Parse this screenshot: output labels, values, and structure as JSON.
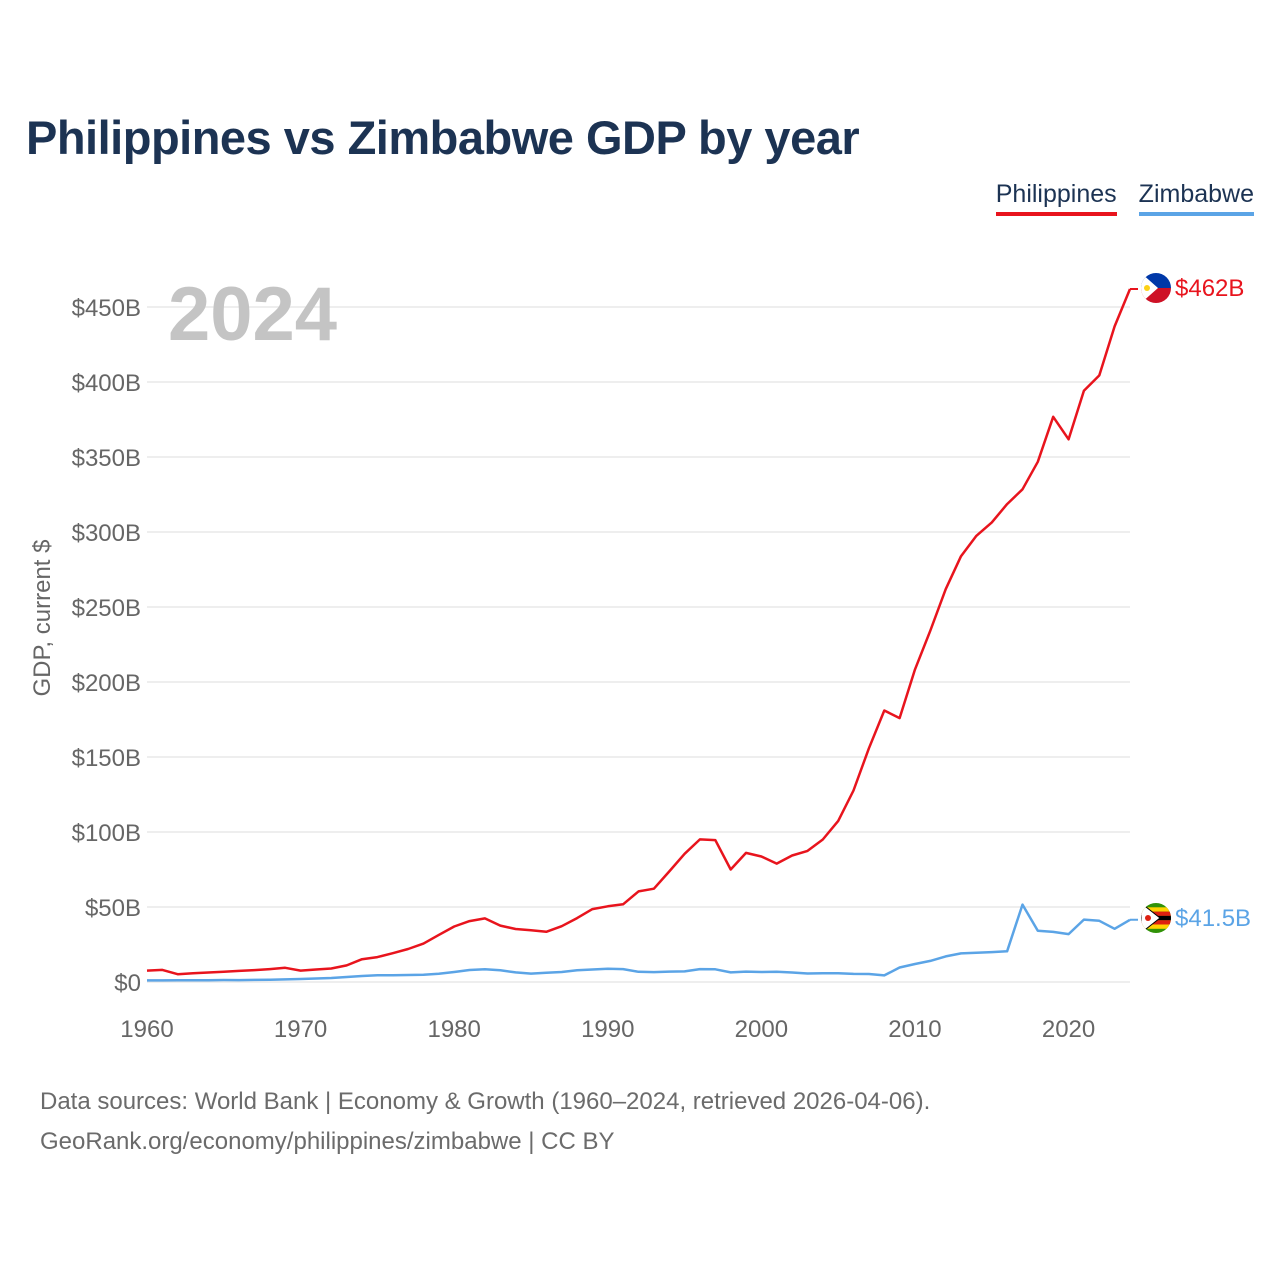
{
  "title": "Philippines vs Zimbabwe GDP by year",
  "legend": [
    {
      "name": "Philippines",
      "color": "#e8141d"
    },
    {
      "name": "Zimbabwe",
      "color": "#5ba4e6"
    }
  ],
  "year_label": "2024",
  "end_labels": {
    "philippines": "$462B",
    "zimbabwe": "$41.5B"
  },
  "footer": {
    "line1": "Data sources: World Bank | Economy & Growth (1960–2024, retrieved 2026-04-06).",
    "line2": "GeoRank.org/economy/philippines/zimbabwe | CC BY"
  },
  "chart_data": {
    "type": "line",
    "title": "Philippines vs Zimbabwe GDP by year",
    "xlabel": "",
    "ylabel": "GDP, current $",
    "xlim": [
      1960,
      2024
    ],
    "ylim": [
      0,
      450
    ],
    "y_unit": "billion USD",
    "x_ticks": [
      1960,
      1970,
      1980,
      1990,
      2000,
      2010,
      2020
    ],
    "y_ticks": [
      0,
      50,
      100,
      150,
      200,
      250,
      300,
      350,
      400,
      450
    ],
    "y_tick_labels": [
      "$0",
      "$50B",
      "$100B",
      "$150B",
      "$200B",
      "$250B",
      "$300B",
      "$350B",
      "$400B",
      "$450B"
    ],
    "grid": true,
    "x": [
      1960,
      1961,
      1962,
      1963,
      1964,
      1965,
      1966,
      1967,
      1968,
      1969,
      1970,
      1971,
      1972,
      1973,
      1974,
      1975,
      1976,
      1977,
      1978,
      1979,
      1980,
      1981,
      1982,
      1983,
      1984,
      1985,
      1986,
      1987,
      1988,
      1989,
      1990,
      1991,
      1992,
      1993,
      1994,
      1995,
      1996,
      1997,
      1998,
      1999,
      2000,
      2001,
      2002,
      2003,
      2004,
      2005,
      2006,
      2007,
      2008,
      2009,
      2010,
      2011,
      2012,
      2013,
      2014,
      2015,
      2016,
      2017,
      2018,
      2019,
      2020,
      2021,
      2022,
      2023,
      2024
    ],
    "series": [
      {
        "name": "Philippines",
        "color": "#e8141d",
        "values": [
          7.6,
          8.1,
          5.2,
          5.8,
          6.3,
          6.8,
          7.4,
          7.9,
          8.6,
          9.5,
          7.6,
          8.3,
          9.0,
          11.1,
          15.2,
          16.6,
          19.2,
          22.0,
          25.6,
          31.4,
          37.0,
          40.6,
          42.4,
          37.6,
          35.3,
          34.5,
          33.5,
          37.2,
          42.6,
          48.6,
          50.5,
          51.8,
          60.4,
          62.2,
          73.7,
          85.5,
          95.1,
          94.6,
          75.0,
          86.1,
          83.7,
          78.9,
          84.3,
          87.4,
          95.0,
          107.4,
          127.7,
          155.8,
          181.0,
          175.9,
          208.4,
          234.2,
          261.9,
          283.9,
          297.5,
          306.4,
          318.6,
          328.5,
          346.8,
          376.8,
          361.8,
          394.1,
          404.4,
          437.1,
          462.0
        ]
      },
      {
        "name": "Zimbabwe",
        "color": "#5ba4e6",
        "values": [
          1.05,
          1.1,
          1.12,
          1.16,
          1.22,
          1.31,
          1.28,
          1.41,
          1.48,
          1.75,
          2.0,
          2.3,
          2.7,
          3.3,
          4.0,
          4.5,
          4.5,
          4.7,
          4.8,
          5.5,
          6.7,
          8.0,
          8.5,
          7.8,
          6.4,
          5.6,
          6.2,
          6.7,
          7.8,
          8.3,
          8.8,
          8.6,
          6.8,
          6.6,
          6.9,
          7.1,
          8.6,
          8.5,
          6.4,
          6.9,
          6.7,
          6.8,
          6.3,
          5.7,
          5.8,
          5.8,
          5.4,
          5.3,
          4.4,
          9.7,
          12.0,
          14.1,
          17.1,
          19.1,
          19.5,
          19.9,
          20.5,
          51.6,
          34.2,
          33.4,
          31.9,
          41.6,
          40.8,
          35.5,
          41.5
        ]
      }
    ]
  }
}
